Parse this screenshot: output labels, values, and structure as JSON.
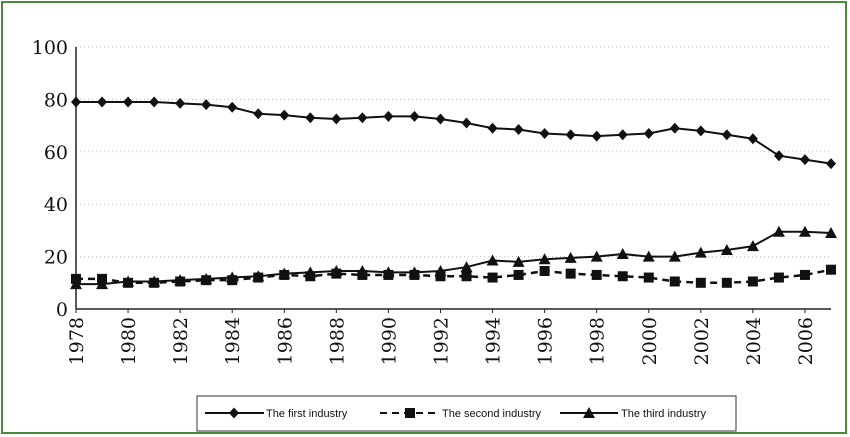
{
  "chart_data": {
    "type": "line",
    "title": "",
    "xlabel": "",
    "ylabel": "",
    "ylim": [
      0,
      100
    ],
    "xlim": [
      1978,
      2007
    ],
    "yticks": [
      0,
      20,
      40,
      60,
      80,
      100
    ],
    "xticks": [
      1978,
      1980,
      1982,
      1984,
      1986,
      1988,
      1990,
      1992,
      1994,
      1996,
      1998,
      2000,
      2002,
      2004,
      2006
    ],
    "grid": "horizontal-dotted",
    "legend": "bottom",
    "x": [
      1978,
      1979,
      1980,
      1981,
      1982,
      1983,
      1984,
      1985,
      1986,
      1987,
      1988,
      1989,
      1990,
      1991,
      1992,
      1993,
      1994,
      1995,
      1996,
      1997,
      1998,
      1999,
      2000,
      2001,
      2002,
      2003,
      2004,
      2005,
      2006,
      2007
    ],
    "series": [
      {
        "name": "The first industry",
        "marker": "diamond",
        "dash": "solid",
        "values": [
          79,
          79,
          79,
          79,
          78.5,
          78,
          77,
          74.5,
          74,
          73,
          72.5,
          73,
          73.5,
          73.5,
          72.5,
          71,
          69,
          68.5,
          67,
          66.5,
          66,
          66.5,
          67,
          69,
          68,
          66.5,
          65,
          58.5,
          57,
          55.5
        ]
      },
      {
        "name": "The second industry",
        "marker": "square",
        "dash": "dashed",
        "values": [
          11.5,
          11.5,
          10,
          10,
          10.5,
          11,
          11,
          12,
          13,
          12.5,
          13.5,
          13,
          13,
          13,
          12.5,
          12.5,
          12,
          13,
          14.5,
          13.5,
          13,
          12.5,
          12,
          10.5,
          10,
          10,
          10.5,
          12,
          13,
          15
        ]
      },
      {
        "name": "The third industry",
        "marker": "triangle",
        "dash": "solid",
        "values": [
          9.5,
          9.5,
          10.5,
          10.5,
          11,
          11.5,
          12,
          12.5,
          13.5,
          14,
          14.5,
          14.5,
          14,
          14,
          14.5,
          16,
          18.5,
          18,
          19,
          19.5,
          20,
          21,
          20,
          20,
          21.5,
          22.5,
          24,
          29.5,
          29.5,
          29
        ]
      }
    ]
  }
}
